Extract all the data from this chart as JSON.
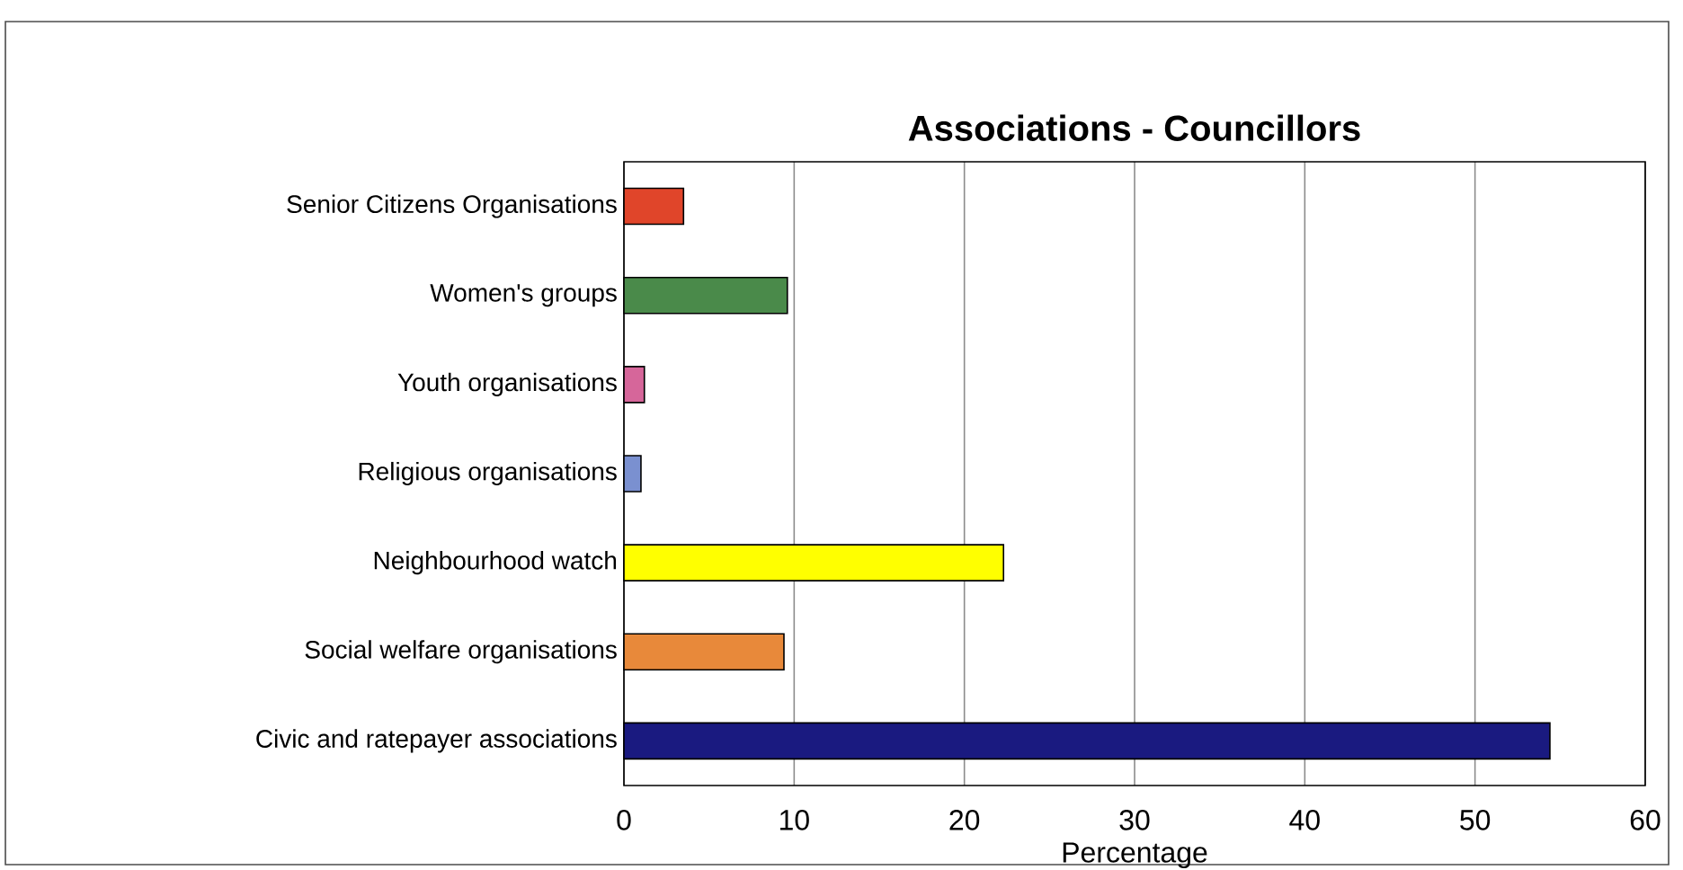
{
  "chart_data": {
    "type": "bar",
    "orientation": "horizontal",
    "title": "Associations - Councillors",
    "xlabel": "Percentage",
    "categories": [
      "Senior Citizens Organisations",
      "Women's groups",
      "Youth organisations",
      "Religious organisations",
      "Neighbourhood watch",
      "Social welfare organisations",
      "Civic and ratepayer associations"
    ],
    "values": [
      3.5,
      9.6,
      1.2,
      1.0,
      22.3,
      9.4,
      54.4
    ],
    "colors": [
      "#e0452a",
      "#4a8a4a",
      "#d6669a",
      "#7a90d0",
      "#ffff00",
      "#e8893a",
      "#1a1a80"
    ],
    "xlim": [
      0,
      60
    ],
    "xticks": [
      0,
      10,
      20,
      30,
      40,
      50,
      60
    ],
    "grid": "x"
  }
}
